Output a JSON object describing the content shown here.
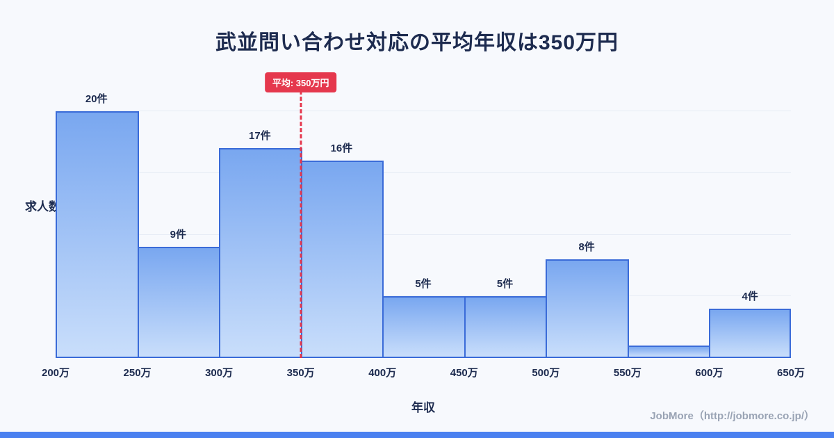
{
  "title": "武並問い合わせ対応の平均年収は350万円",
  "chart_data": {
    "type": "bar",
    "subtype": "histogram",
    "title": "武並問い合わせ対応の平均年収は350万円",
    "categories": [
      "200万",
      "250万",
      "300万",
      "350万",
      "400万",
      "450万",
      "500万",
      "550万",
      "600万",
      "650万"
    ],
    "values": [
      20,
      9,
      17,
      16,
      5,
      5,
      8,
      1,
      4
    ],
    "bar_labels": [
      "20件",
      "9件",
      "17件",
      "16件",
      "5件",
      "5件",
      "8件",
      "",
      "4件"
    ],
    "xlabel": "年収",
    "ylabel": "求人数",
    "ylim": [
      0,
      20
    ],
    "yticks": [
      5,
      10,
      15,
      20
    ],
    "grid": "horizontal",
    "legend": "none",
    "average_line": {
      "boundary_index": 3,
      "value": "350万",
      "label": "平均: 350万円"
    }
  },
  "footer": {
    "credit": "JobMore（http://jobmore.co.jp/）"
  },
  "colors": {
    "background": "#f7f9fd",
    "title": "#1d2b4f",
    "axis_text": "#1d2b4f",
    "grid": "#e6ecf5",
    "bar_fill_top": "#79a7f0",
    "bar_fill_bottom": "#c9defb",
    "bar_border": "#3a6bd8",
    "average": "#e5384d",
    "bottom_strip": "#4a80f0",
    "footer_text": "#99a3b4"
  }
}
